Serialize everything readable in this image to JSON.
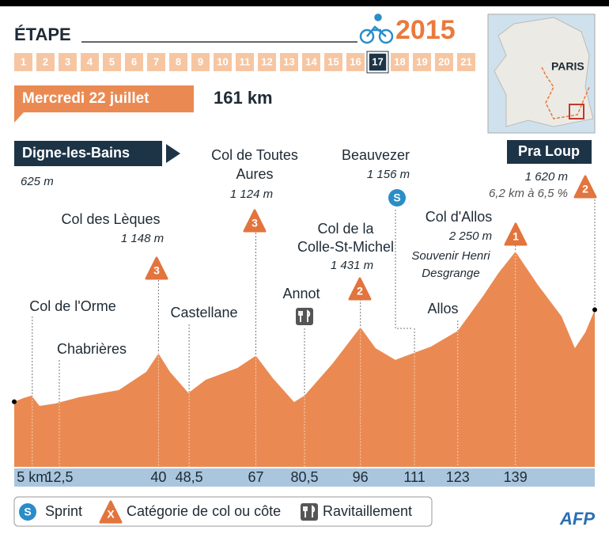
{
  "header": {
    "title": "ÉTAPE",
    "year": "2015",
    "stages": [
      1,
      2,
      3,
      4,
      5,
      6,
      7,
      8,
      9,
      10,
      11,
      12,
      13,
      14,
      15,
      16,
      17,
      18,
      19,
      20,
      21
    ],
    "current_stage": 17
  },
  "map": {
    "label": "PARIS"
  },
  "date": "Mercredi 22 juillet",
  "distance": "161 km",
  "start": {
    "name": "Digne-les-Bains",
    "elevation": "625 m"
  },
  "finish": {
    "name": "Pra Loup",
    "elevation": "1 620 m",
    "climb": "6,2 km à 6,5 %",
    "category": "2"
  },
  "points": {
    "orme": "Col de l'Orme",
    "chabrieres": "Chabrières",
    "leques": {
      "name": "Col des Lèques",
      "elevation": "1 148 m",
      "category": "3"
    },
    "castellane": "Castellane",
    "toutes_aures": {
      "name": [
        "Col de Toutes",
        "Aures"
      ],
      "elevation": "1 124 m",
      "category": "3"
    },
    "annot": "Annot",
    "colle": {
      "name": [
        "Col de la",
        "Colle-St-Michel"
      ],
      "elevation": "1 431 m",
      "category": "2"
    },
    "beauvezer": {
      "name": "Beauvezer",
      "elevation": "1 156 m"
    },
    "allos": "Allos",
    "col_allos": {
      "name": "Col d'Allos",
      "elevation": "2 250 m",
      "note": [
        "Souvenir Henri",
        "Desgrange"
      ],
      "category": "1"
    }
  },
  "chart_data": {
    "type": "area",
    "color": "#ea8a52",
    "x": [
      0,
      2.6,
      4.8,
      7,
      11.4,
      18,
      29,
      36.6,
      40,
      43.2,
      48.3,
      53.1,
      61.9,
      67,
      71.7,
      77.6,
      80.5,
      88.2,
      96,
      100.2,
      105.7,
      111,
      115.6,
      123,
      129.9,
      134.3,
      139,
      145.2,
      151.8,
      155.5,
      158.4,
      161
    ],
    "values": [
      625,
      665,
      691,
      580,
      605,
      674,
      751,
      948,
      1148,
      948,
      720,
      862,
      991,
      1124,
      880,
      622,
      691,
      1034,
      1431,
      1205,
      1077,
      1156,
      1222,
      1393,
      1762,
      2019,
      2250,
      1890,
      1548,
      1205,
      1376,
      1620
    ],
    "xlim": [
      0,
      161
    ],
    "ylim": [
      -80,
      2400
    ],
    "xticks": [
      {
        "value": 5,
        "label": "5 km"
      },
      {
        "value": 12.5,
        "label": "12,5"
      },
      40,
      {
        "value": 48.5,
        "label": "48,5"
      },
      67,
      {
        "value": 80.5,
        "label": "80,5"
      },
      96,
      111,
      123,
      139
    ]
  },
  "legend": {
    "sprint_symbol": "S",
    "sprint": "Sprint",
    "category_symbol": "X",
    "category": "Catégorie de col ou côte",
    "supply": "Ravitaillement"
  },
  "source": "AFP"
}
